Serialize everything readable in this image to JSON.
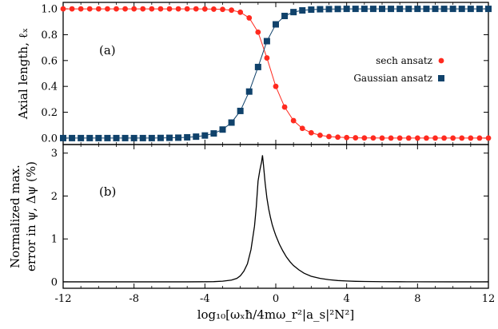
{
  "chart_data": [
    {
      "panel": "(a)",
      "type": "line",
      "ylabel": "Axial length, ℓ_x",
      "xlabel": "",
      "xlim": [
        -12,
        12
      ],
      "ylim": [
        -0.05,
        1.05
      ],
      "xticks": [
        -12,
        -8,
        -4,
        0,
        4,
        8,
        12
      ],
      "yticks": [
        "0.0",
        "0.2",
        "0.4",
        "0.6",
        "0.8",
        "1.0"
      ],
      "legend_position": "right",
      "series": [
        {
          "name": "sech ansatz",
          "color": "#ff2a1f",
          "marker": "circle",
          "x": [
            -12.0,
            -11.5,
            -11.0,
            -10.5,
            -10.0,
            -9.5,
            -9.0,
            -8.5,
            -8.0,
            -7.5,
            -7.0,
            -6.5,
            -6.0,
            -5.5,
            -5.0,
            -4.5,
            -4.0,
            -3.5,
            -3.0,
            -2.5,
            -2.0,
            -1.5,
            -1.0,
            -0.5,
            0.0,
            0.5,
            1.0,
            1.5,
            2.0,
            2.5,
            3.0,
            3.5,
            4.0,
            4.5,
            5.0,
            5.5,
            6.0,
            6.5,
            7.0,
            7.5,
            8.0,
            8.5,
            9.0,
            9.5,
            10.0,
            10.5,
            11.0,
            11.5,
            12.0
          ],
          "values": [
            1.0,
            1.0,
            1.0,
            1.0,
            1.0,
            1.0,
            1.0,
            1.0,
            1.0,
            1.0,
            1.0,
            1.0,
            1.0,
            1.0,
            1.0,
            1.0,
            0.999,
            0.998,
            0.996,
            0.99,
            0.974,
            0.93,
            0.82,
            0.62,
            0.4,
            0.24,
            0.135,
            0.075,
            0.041,
            0.022,
            0.012,
            0.007,
            0.004,
            0.002,
            0.001,
            0.001,
            0.0,
            0.0,
            0.0,
            0.0,
            0.0,
            0.0,
            0.0,
            0.0,
            0.0,
            0.0,
            0.0,
            0.0,
            0.0
          ]
        },
        {
          "name": "Gaussian ansatz",
          "color": "#10426b",
          "marker": "square",
          "x": [
            -12.0,
            -11.5,
            -11.0,
            -10.5,
            -10.0,
            -9.5,
            -9.0,
            -8.5,
            -8.0,
            -7.5,
            -7.0,
            -6.5,
            -6.0,
            -5.5,
            -5.0,
            -4.5,
            -4.0,
            -3.5,
            -3.0,
            -2.5,
            -2.0,
            -1.5,
            -1.0,
            -0.5,
            0.0,
            0.5,
            1.0,
            1.5,
            2.0,
            2.5,
            3.0,
            3.5,
            4.0,
            4.5,
            5.0,
            5.5,
            6.0,
            6.5,
            7.0,
            7.5,
            8.0,
            8.5,
            9.0,
            9.5,
            10.0,
            10.5,
            11.0,
            11.5,
            12.0
          ],
          "values": [
            0.0,
            0.0,
            0.0,
            0.0,
            0.0,
            0.0,
            0.0,
            0.0,
            0.0,
            0.0,
            0.0,
            0.001,
            0.002,
            0.003,
            0.006,
            0.011,
            0.02,
            0.036,
            0.066,
            0.12,
            0.21,
            0.36,
            0.55,
            0.75,
            0.88,
            0.945,
            0.975,
            0.988,
            0.994,
            0.997,
            0.998,
            0.999,
            1.0,
            1.0,
            1.0,
            1.0,
            1.0,
            1.0,
            1.0,
            1.0,
            1.0,
            1.0,
            1.0,
            1.0,
            1.0,
            1.0,
            1.0,
            1.0,
            1.0
          ]
        }
      ]
    },
    {
      "panel": "(b)",
      "type": "line",
      "ylabel_lines": [
        "Normalized max.",
        "error in ψ, Δψ (%)"
      ],
      "xlabel": "log₁₀[ωₓħ/4mω_r²|a_s|²N²]",
      "xlim": [
        -12,
        12
      ],
      "ylim": [
        -0.15,
        3.2
      ],
      "xticks": [
        -12,
        -8,
        -4,
        0,
        4,
        8,
        12
      ],
      "yticks": [
        "0",
        "1",
        "2",
        "3"
      ],
      "series": [
        {
          "color": "#000000",
          "x": [
            -12,
            -10,
            -8,
            -6,
            -5,
            -4,
            -3.5,
            -3,
            -2.5,
            -2.2,
            -2,
            -1.8,
            -1.6,
            -1.4,
            -1.2,
            -1.1,
            -1.0,
            -0.9,
            -0.8,
            -0.75,
            -0.7,
            -0.6,
            -0.5,
            -0.4,
            -0.3,
            -0.2,
            -0.1,
            0,
            0.2,
            0.4,
            0.6,
            0.8,
            1.0,
            1.3,
            1.6,
            2.0,
            2.5,
            3.0,
            3.5,
            4.0,
            4.5,
            5.0,
            6.0,
            7.0,
            8.0,
            10.0,
            12.0
          ],
          "values": [
            0,
            0,
            0,
            0,
            0,
            0.002,
            0.005,
            0.015,
            0.04,
            0.08,
            0.14,
            0.25,
            0.42,
            0.75,
            1.3,
            1.75,
            2.35,
            2.6,
            2.8,
            2.95,
            2.75,
            2.3,
            1.95,
            1.7,
            1.5,
            1.33,
            1.2,
            1.08,
            0.88,
            0.72,
            0.58,
            0.47,
            0.38,
            0.28,
            0.2,
            0.13,
            0.08,
            0.05,
            0.03,
            0.02,
            0.012,
            0.008,
            0.004,
            0.002,
            0.001,
            0,
            0
          ]
        }
      ]
    }
  ],
  "panel_tags": {
    "a": "(a)",
    "b": "(b)"
  },
  "legend": {
    "sech": "sech ansatz",
    "gaussian": "Gaussian ansatz"
  },
  "axis_labels": {
    "a_y": "Axial length, ℓₓ",
    "b_y_line1": "Normalized max.",
    "b_y_line2": "error in ψ, Δψ (%)",
    "x": "log₁₀[ωₓħ/4mω_r²|a_s|²N²]"
  }
}
